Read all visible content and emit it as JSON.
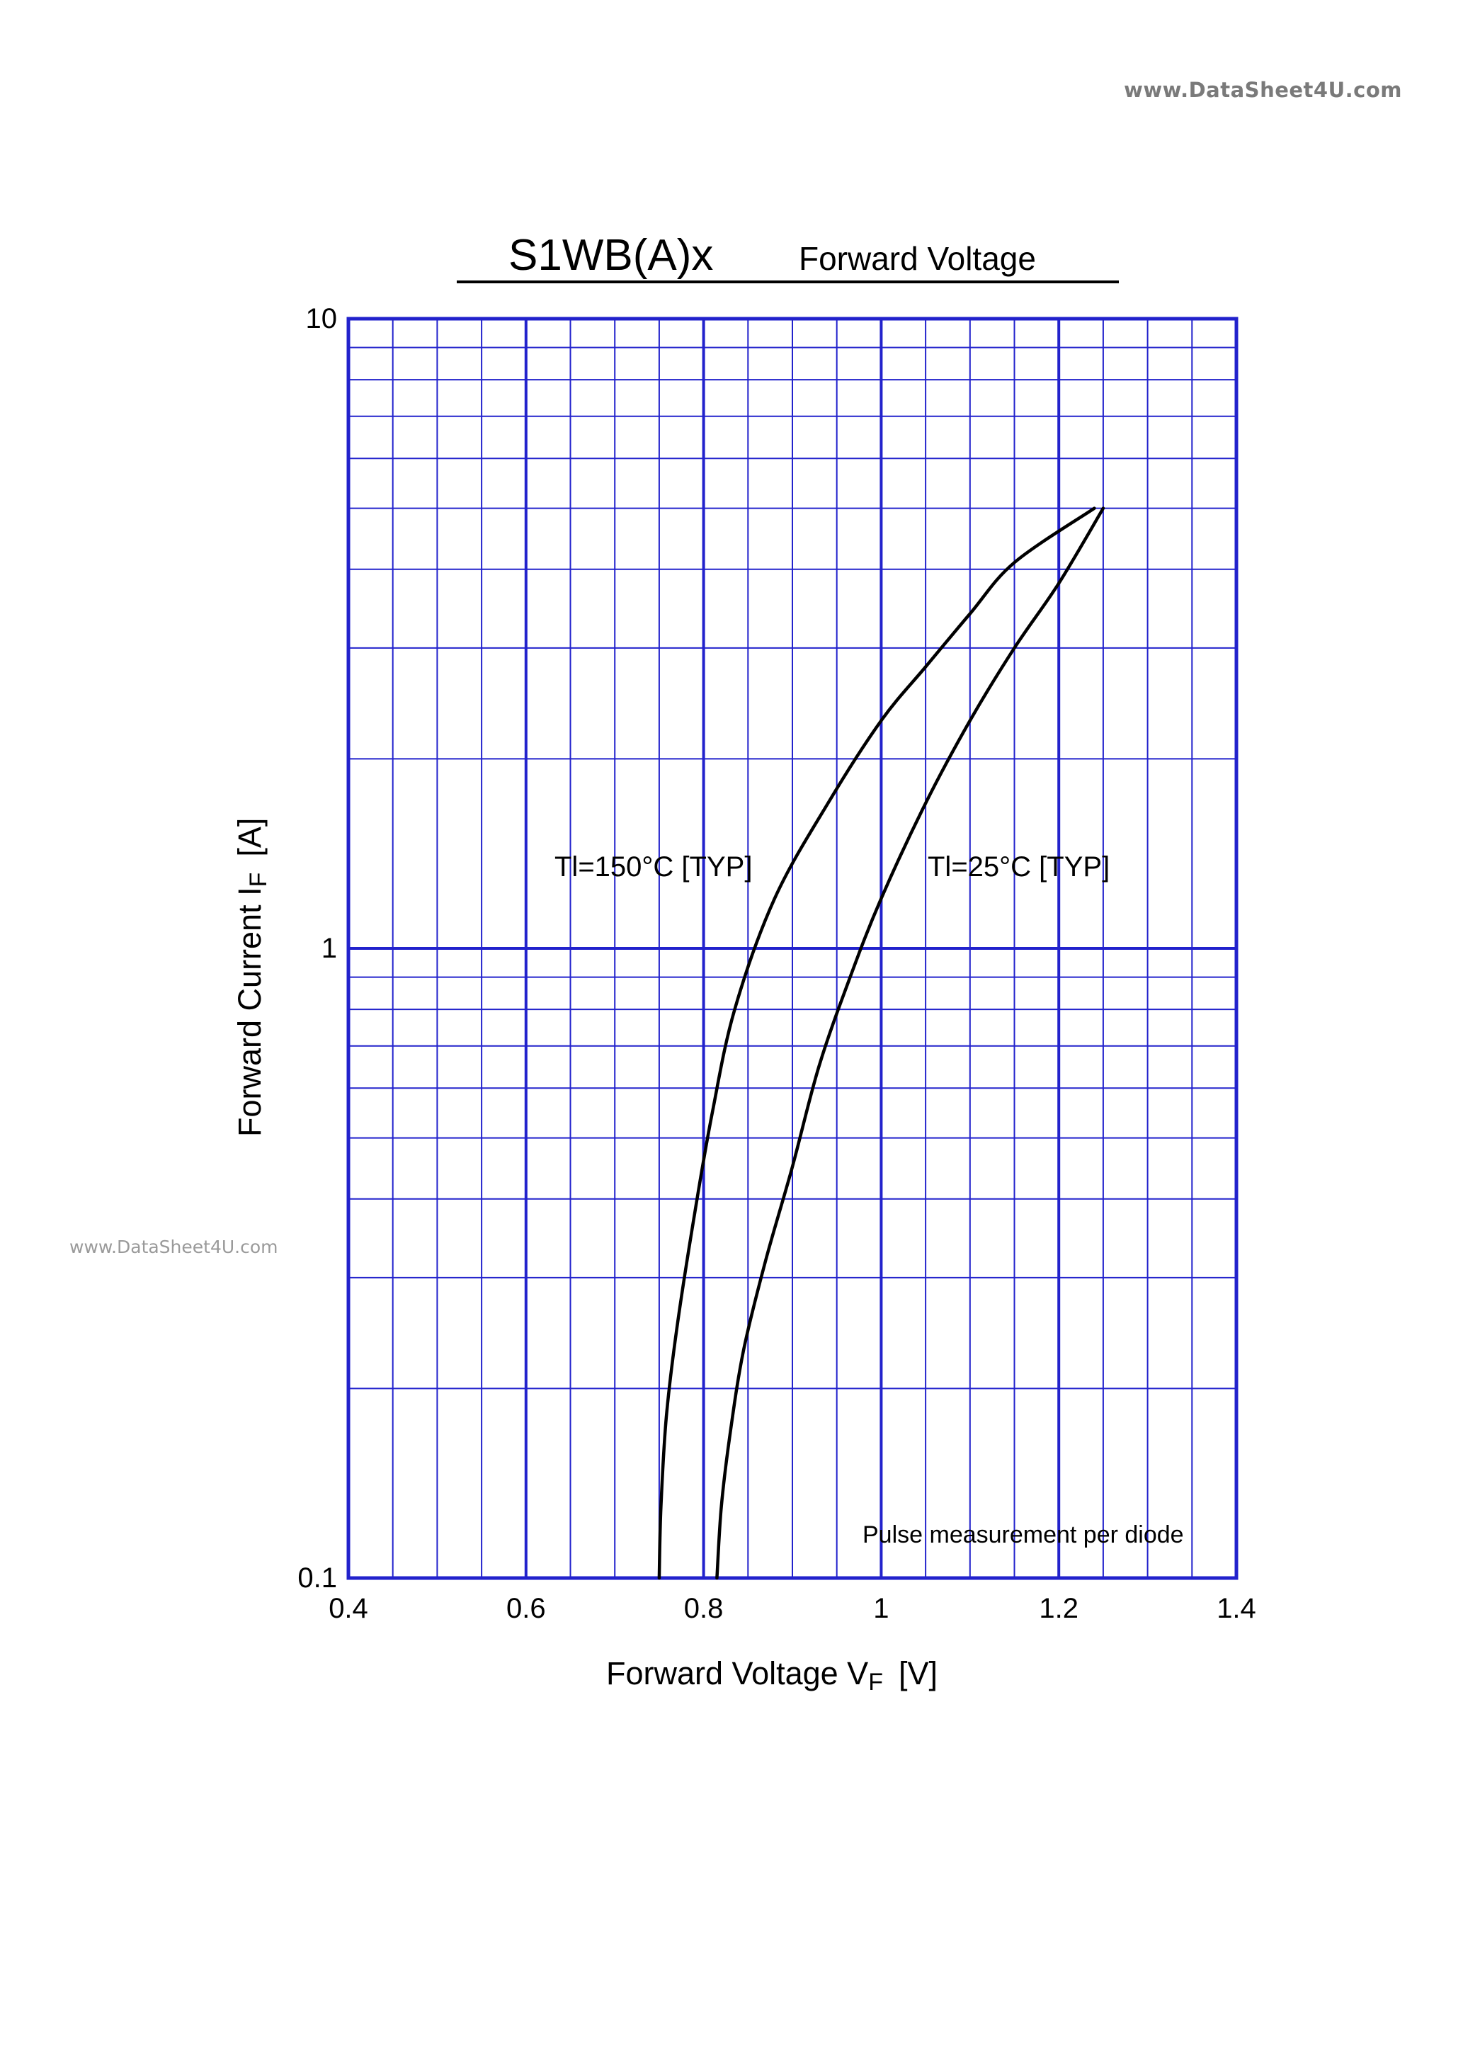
{
  "watermarks": {
    "top": "www.DataSheet4U.com",
    "side": "www.DataSheet4U.com"
  },
  "header": {
    "title_main": "S1WB(A)x",
    "title_sub": "Forward  Voltage"
  },
  "colors": {
    "grid": "#2222cc",
    "curve": "#000000",
    "background": "#ffffff"
  },
  "chart_data": {
    "type": "line",
    "x_axis": {
      "label_main": "Forward Voltage  V",
      "label_sub": "F",
      "label_unit": "[V]",
      "scale": "linear",
      "range": [
        0.4,
        1.4
      ],
      "ticks": [
        0.4,
        0.6,
        0.8,
        1.0,
        1.2,
        1.4
      ],
      "tick_labels": [
        "0.4",
        "0.6",
        "0.8",
        "1",
        "1.2",
        "1.4"
      ],
      "minor_step": 0.05
    },
    "y_axis": {
      "label_main": "Forward Current  I",
      "label_sub": "F",
      "label_unit": "[A]",
      "scale": "log",
      "range": [
        0.1,
        10
      ],
      "ticks": [
        0.1,
        1,
        10
      ],
      "tick_labels": [
        "0.1",
        "1",
        "10"
      ]
    },
    "grid": true,
    "series": [
      {
        "name": "Tl=150°C [TYP]",
        "points": [
          [
            0.75,
            0.1
          ],
          [
            0.752,
            0.13
          ],
          [
            0.758,
            0.18
          ],
          [
            0.77,
            0.25
          ],
          [
            0.79,
            0.38
          ],
          [
            0.81,
            0.55
          ],
          [
            0.835,
            0.8
          ],
          [
            0.88,
            1.2
          ],
          [
            0.94,
            1.7
          ],
          [
            1.0,
            2.3
          ],
          [
            1.05,
            2.8
          ],
          [
            1.1,
            3.4
          ],
          [
            1.15,
            4.1
          ],
          [
            1.24,
            5.0
          ]
        ]
      },
      {
        "name": "Tl=25°C [TYP]",
        "points": [
          [
            0.815,
            0.1
          ],
          [
            0.82,
            0.13
          ],
          [
            0.83,
            0.17
          ],
          [
            0.845,
            0.23
          ],
          [
            0.87,
            0.32
          ],
          [
            0.9,
            0.45
          ],
          [
            0.93,
            0.65
          ],
          [
            0.965,
            0.9
          ],
          [
            1.0,
            1.2
          ],
          [
            1.05,
            1.7
          ],
          [
            1.1,
            2.3
          ],
          [
            1.15,
            3.0
          ],
          [
            1.2,
            3.8
          ],
          [
            1.25,
            5.0
          ]
        ]
      }
    ],
    "annotations": {
      "series_150": "Tl=150°C [TYP]",
      "series_25": "Tl=25°C [TYP]",
      "note": "Pulse  measurement  per  diode"
    }
  }
}
